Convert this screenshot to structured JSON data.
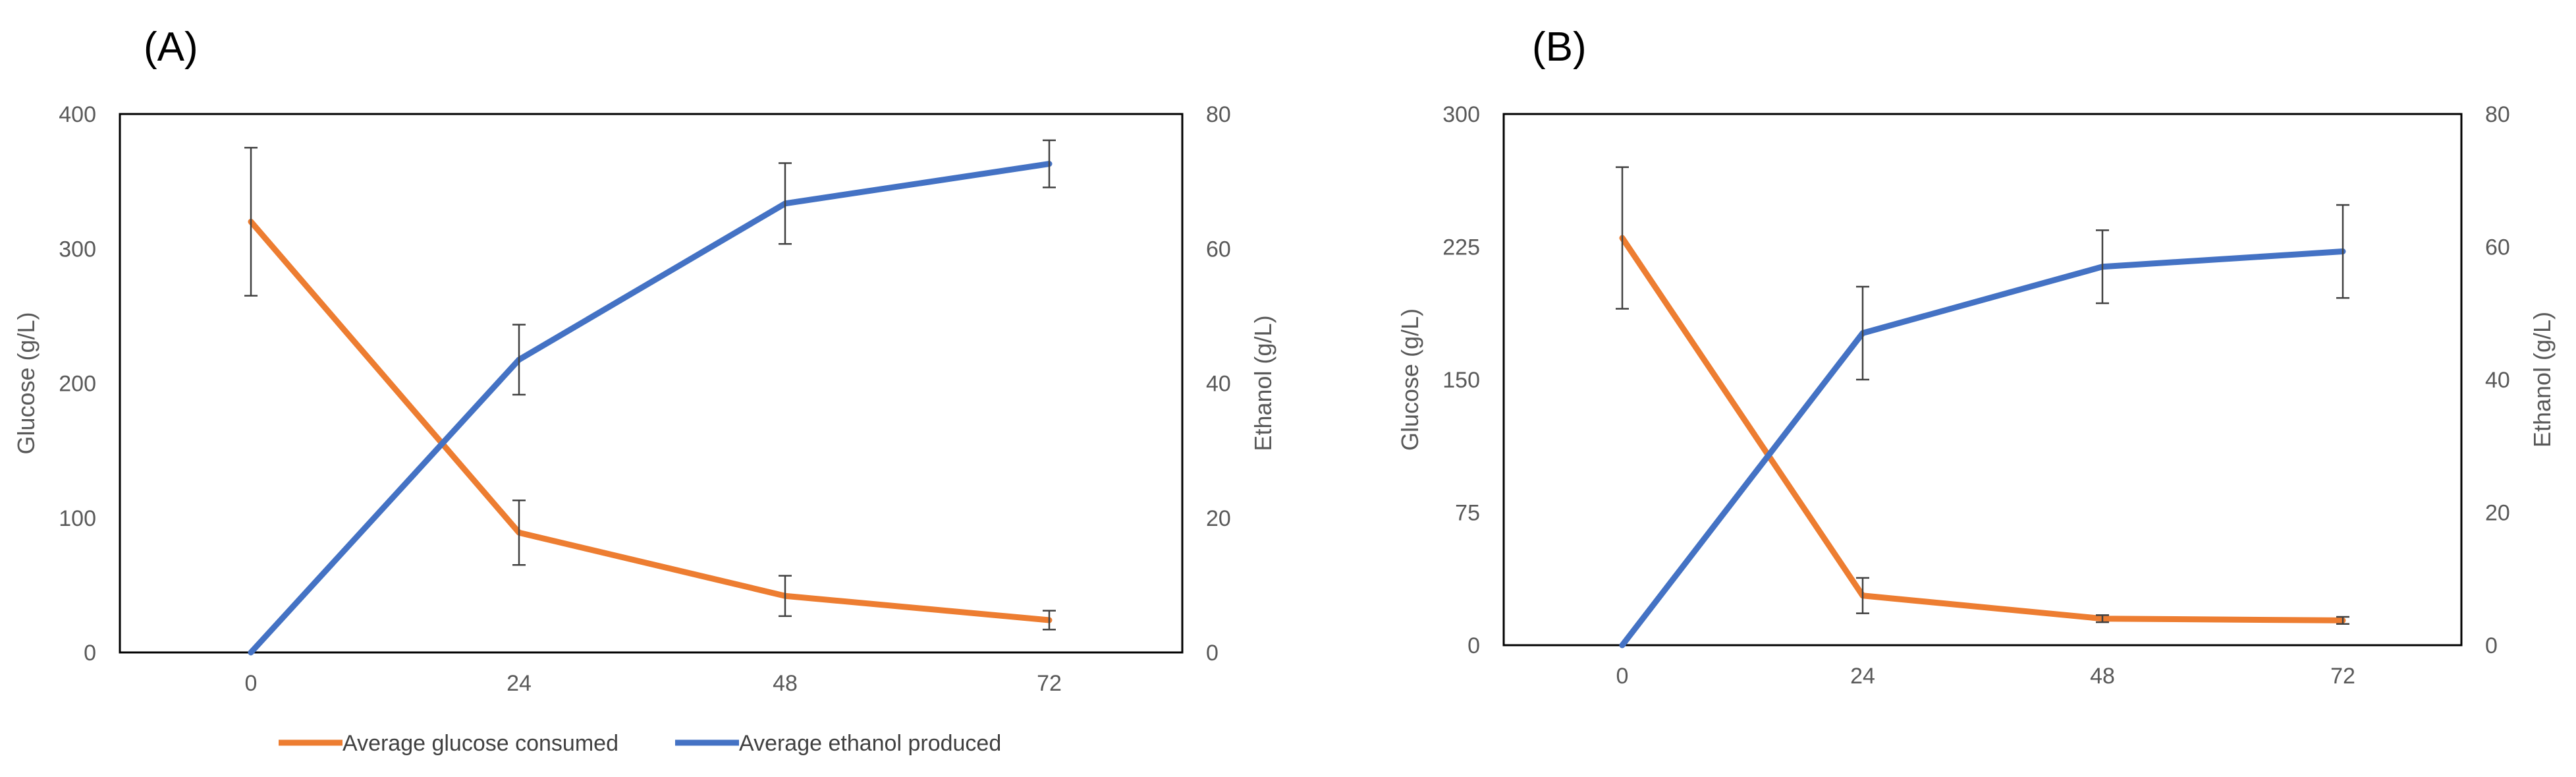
{
  "colors": {
    "glucose": "#ED7D31",
    "ethanol": "#4472C4",
    "error_bar": "#404040",
    "axis": "#000000",
    "text": "#595959"
  },
  "legend": {
    "glucose": "Average glucose consumed",
    "ethanol": "Average ethanol produced"
  },
  "chart_data": [
    {
      "panel": "(A)",
      "type": "line",
      "categories": [
        "0",
        "24",
        "48",
        "72"
      ],
      "ylabel_left": "Glucose (g/L)",
      "ylabel_right": "Ethanol (g/L)",
      "ylim_left": [
        0,
        400
      ],
      "yticks_left": [
        "0",
        "100",
        "200",
        "300",
        "400"
      ],
      "ylim_right": [
        0,
        80
      ],
      "yticks_right": [
        "0",
        "20",
        "40",
        "60",
        "80"
      ],
      "series": [
        {
          "name": "Average glucose consumed",
          "axis": "left",
          "values": [
            320,
            89,
            42,
            24
          ],
          "errors": [
            55,
            24,
            15,
            7
          ]
        },
        {
          "name": "Average ethanol produced",
          "axis": "right",
          "values": [
            0,
            43.5,
            66.7,
            72.6
          ],
          "errors": [
            0,
            5.2,
            6.0,
            3.5
          ]
        }
      ]
    },
    {
      "panel": "(B)",
      "type": "line",
      "categories": [
        "0",
        "24",
        "48",
        "72"
      ],
      "ylabel_left": "Glucose (g/L)",
      "ylabel_right": "Ethanol (g/L)",
      "ylim_left": [
        0,
        300
      ],
      "yticks_left": [
        "0",
        "75",
        "150",
        "225",
        "300"
      ],
      "ylim_right": [
        0,
        80
      ],
      "yticks_right": [
        "0",
        "20",
        "40",
        "60",
        "80"
      ],
      "series": [
        {
          "name": "Average glucose consumed",
          "axis": "left",
          "values": [
            230,
            28,
            15,
            14
          ],
          "errors": [
            40,
            10,
            2,
            2
          ]
        },
        {
          "name": "Average ethanol produced",
          "axis": "right",
          "values": [
            0,
            47.0,
            57.0,
            59.3
          ],
          "errors": [
            0,
            7.0,
            5.5,
            7.0
          ]
        }
      ]
    }
  ]
}
